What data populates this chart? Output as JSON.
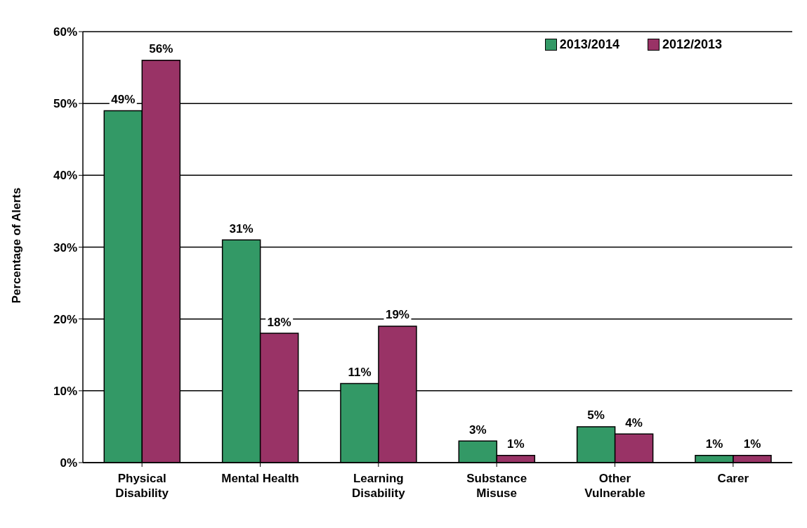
{
  "chart_data": {
    "type": "bar",
    "ylabel": "Percentage of Alerts",
    "categories": [
      "Physical Disability",
      "Mental Health",
      "Learning Disability",
      "Substance Misuse",
      "Other Vulnerable",
      "Carer"
    ],
    "series": [
      {
        "name": "2013/2014",
        "color": "#339966",
        "values": [
          49,
          31,
          11,
          3,
          5,
          1
        ],
        "value_labels": [
          "49%",
          "31%",
          "11%",
          "3%",
          "5%",
          "1%"
        ]
      },
      {
        "name": "2012/2013",
        "color": "#993366",
        "values": [
          56,
          18,
          19,
          1,
          4,
          1
        ],
        "value_labels": [
          "56%",
          "18%",
          "19%",
          "1%",
          "4%",
          "1%"
        ]
      }
    ],
    "ylim": [
      0,
      60
    ],
    "yticks": [
      {
        "value": 0,
        "label": "0%"
      },
      {
        "value": 10,
        "label": "10%"
      },
      {
        "value": 20,
        "label": "20%"
      },
      {
        "value": 30,
        "label": "30%"
      },
      {
        "value": 40,
        "label": "40%"
      },
      {
        "value": 50,
        "label": "50%"
      },
      {
        "value": 60,
        "label": "60%"
      }
    ],
    "grid": "y",
    "legend": "top right"
  }
}
